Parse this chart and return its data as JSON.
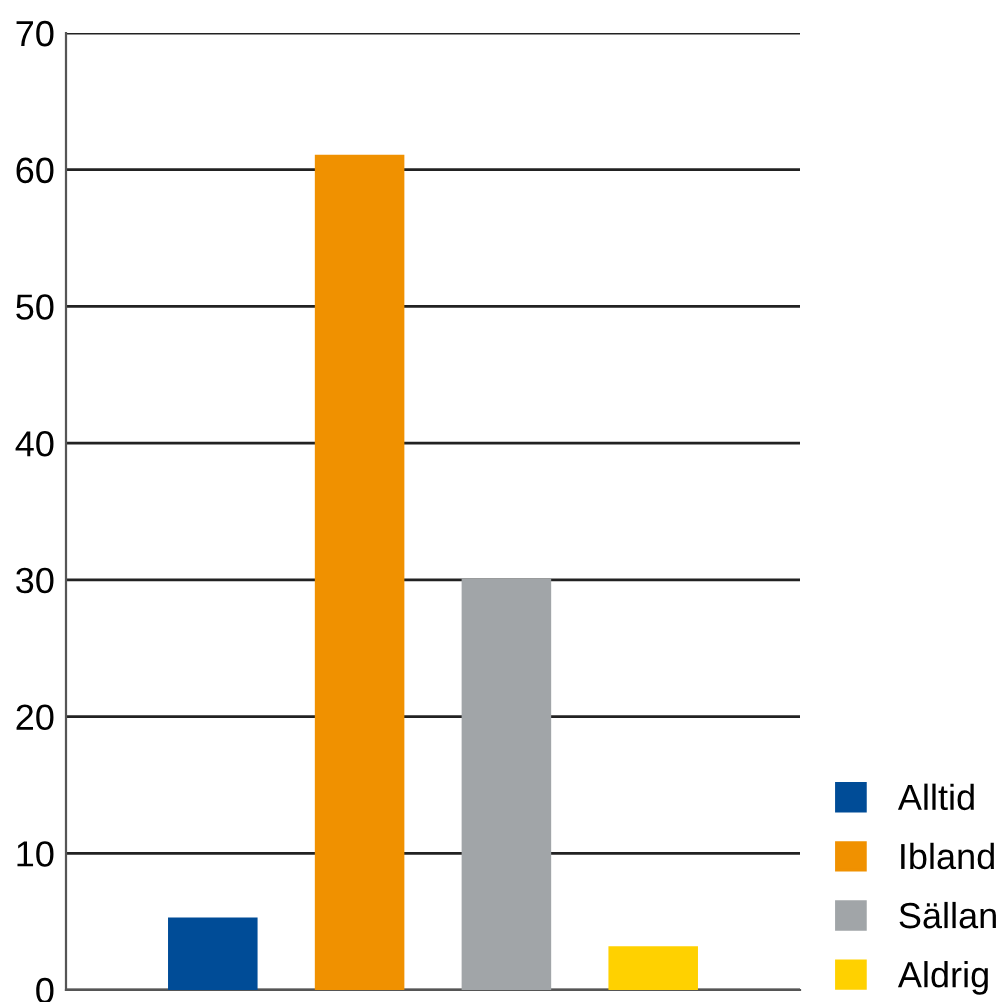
{
  "chart_data": {
    "type": "bar",
    "categories": [
      null,
      null,
      null,
      null
    ],
    "series": [
      {
        "name": "Alltid",
        "color": "#004c97",
        "values": [
          5.3,
          null,
          null,
          null
        ]
      },
      {
        "name": "Ibland",
        "color": "#f09100",
        "values": [
          null,
          61.1,
          null,
          null
        ]
      },
      {
        "name": "Sällan",
        "color": "#a1a5a8",
        "values": [
          null,
          null,
          30.1,
          null
        ]
      },
      {
        "name": "Aldrig",
        "color": "#ffd100",
        "values": [
          null,
          null,
          null,
          3.2
        ]
      }
    ],
    "ylim": [
      0,
      70
    ],
    "yticks": [
      0,
      10,
      20,
      30,
      40,
      50,
      60,
      70
    ],
    "grid": "y",
    "legend": "bottom right",
    "tick_labels": "y"
  }
}
